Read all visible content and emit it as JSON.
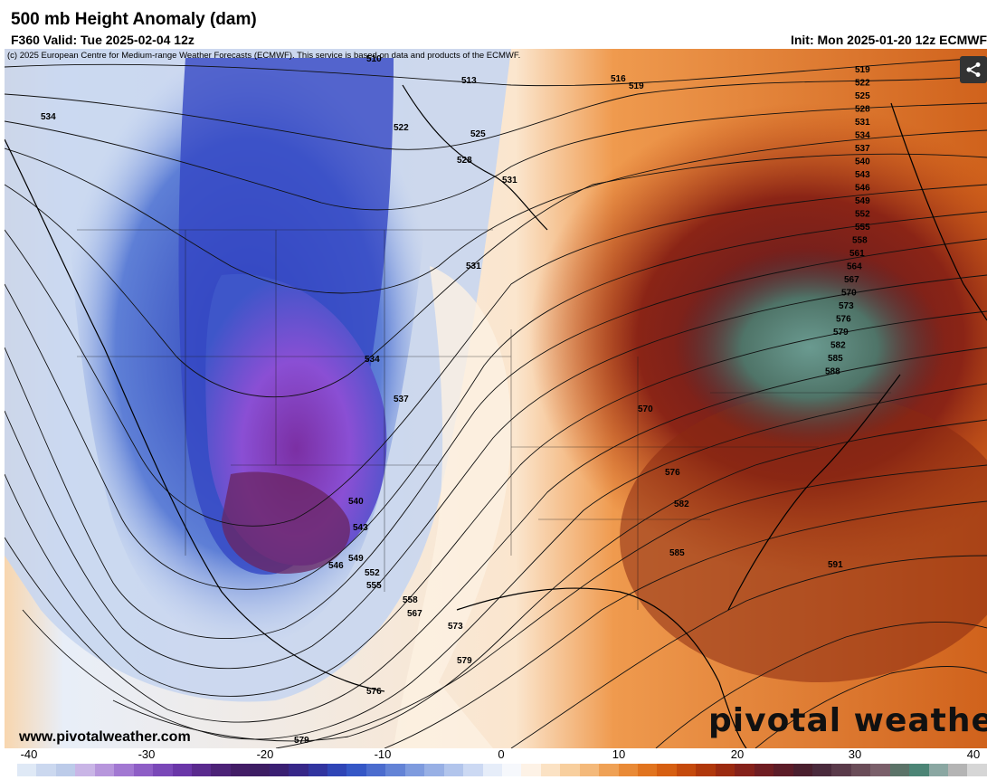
{
  "header": {
    "title": "500 mb Height Anomaly (dam)",
    "valid": "F360 Valid: Tue 2025-02-04 12z",
    "init": "Init: Mon 2025-01-20 12z ECMWF"
  },
  "map": {
    "credit": "(c) 2025 European Centre for Medium-range Weather Forecasts (ECMWF). This service is based on data and products of the ECMWF.",
    "contour_labels": [
      "510",
      "513",
      "516",
      "519",
      "522",
      "525",
      "528",
      "531",
      "534",
      "537",
      "540",
      "543",
      "546",
      "549",
      "552",
      "555",
      "558",
      "561",
      "564",
      "567",
      "570",
      "573",
      "576",
      "579",
      "582",
      "585",
      "588",
      "591"
    ]
  },
  "watermark": "pivotal weather",
  "site": "www.pivotalweather.com",
  "colorbar": {
    "ticks": [
      "-40",
      "-30",
      "-20",
      "-10",
      "0",
      "10",
      "20",
      "30",
      "40"
    ],
    "colors": [
      "#dfe9f6",
      "#cbd8ef",
      "#bccbe9",
      "#c9b5e6",
      "#b796dc",
      "#a278d2",
      "#8e5ec6",
      "#7a48b8",
      "#6a36a8",
      "#5a2a8e",
      "#4c2277",
      "#421d66",
      "#3d1d63",
      "#3a1f72",
      "#372788",
      "#31349f",
      "#2f45b6",
      "#3557c6",
      "#4b6cce",
      "#6383d6",
      "#7e9bde",
      "#98b0e5",
      "#b2c5ec",
      "#ccd9f3",
      "#e6edf9",
      "#f6f8fc",
      "#fdf2e6",
      "#fbe2c4",
      "#f8cf9e",
      "#f4b97a",
      "#efa155",
      "#e98a36",
      "#e1741f",
      "#d65f12",
      "#c54a0c",
      "#b0380b",
      "#9b2a10",
      "#85211a",
      "#6f1d22",
      "#5c1c28",
      "#4a1f2e",
      "#4a2a3c",
      "#5a3a4a",
      "#6a4c58",
      "#7a5f6a",
      "#5b7368",
      "#4c8576",
      "#8aa7a2",
      "#b4b4b4",
      "#d6d6d6"
    ],
    "tick_color": "#000000"
  }
}
